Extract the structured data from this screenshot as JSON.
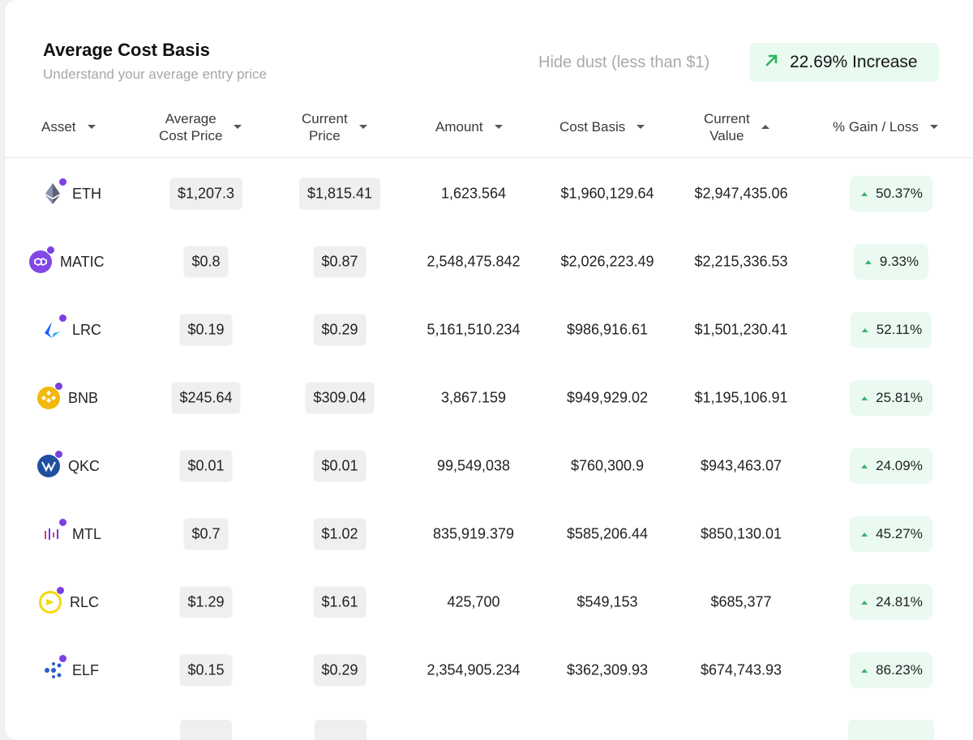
{
  "header": {
    "title": "Average Cost Basis",
    "subtitle": "Understand your average entry price",
    "hide_dust": "Hide dust (less than $1)",
    "increase": "22.69% Increase",
    "colors": {
      "increase_bg": "#e9faf0",
      "increase_arrow": "#2bb25a",
      "badge_dot": "#7b3fe4"
    }
  },
  "columns": {
    "asset": "Asset",
    "avg_cost": "Average\nCost Price",
    "current_price": "Current\nPrice",
    "amount": "Amount",
    "cost_basis": "Cost Basis",
    "current_value": "Current\nValue",
    "gain_loss": "% Gain / Loss"
  },
  "rows": [
    {
      "asset": "ETH",
      "icon": "eth-icon",
      "avg_cost": "$1,207.3",
      "current_price": "$1,815.41",
      "amount": "1,623.564",
      "cost_basis": "$1,960,129.64",
      "current_value": "$2,947,435.06",
      "gain": "50.37%"
    },
    {
      "asset": "MATIC",
      "icon": "matic-icon",
      "avg_cost": "$0.8",
      "current_price": "$0.87",
      "amount": "2,548,475.842",
      "cost_basis": "$2,026,223.49",
      "current_value": "$2,215,336.53",
      "gain": "9.33%"
    },
    {
      "asset": "LRC",
      "icon": "lrc-icon",
      "avg_cost": "$0.19",
      "current_price": "$0.29",
      "amount": "5,161,510.234",
      "cost_basis": "$986,916.61",
      "current_value": "$1,501,230.41",
      "gain": "52.11%"
    },
    {
      "asset": "BNB",
      "icon": "bnb-icon",
      "avg_cost": "$245.64",
      "current_price": "$309.04",
      "amount": "3,867.159",
      "cost_basis": "$949,929.02",
      "current_value": "$1,195,106.91",
      "gain": "25.81%"
    },
    {
      "asset": "QKC",
      "icon": "qkc-icon",
      "avg_cost": "$0.01",
      "current_price": "$0.01",
      "amount": "99,549,038",
      "cost_basis": "$760,300.9",
      "current_value": "$943,463.07",
      "gain": "24.09%"
    },
    {
      "asset": "MTL",
      "icon": "mtl-icon",
      "avg_cost": "$0.7",
      "current_price": "$1.02",
      "amount": "835,919.379",
      "cost_basis": "$585,206.44",
      "current_value": "$850,130.01",
      "gain": "45.27%"
    },
    {
      "asset": "RLC",
      "icon": "rlc-icon",
      "avg_cost": "$1.29",
      "current_price": "$1.61",
      "amount": "425,700",
      "cost_basis": "$549,153",
      "current_value": "$685,377",
      "gain": "24.81%"
    },
    {
      "asset": "ELF",
      "icon": "elf-icon",
      "avg_cost": "$0.15",
      "current_price": "$0.29",
      "amount": "2,354,905.234",
      "cost_basis": "$362,309.93",
      "current_value": "$674,743.93",
      "gain": "86.23%"
    }
  ]
}
